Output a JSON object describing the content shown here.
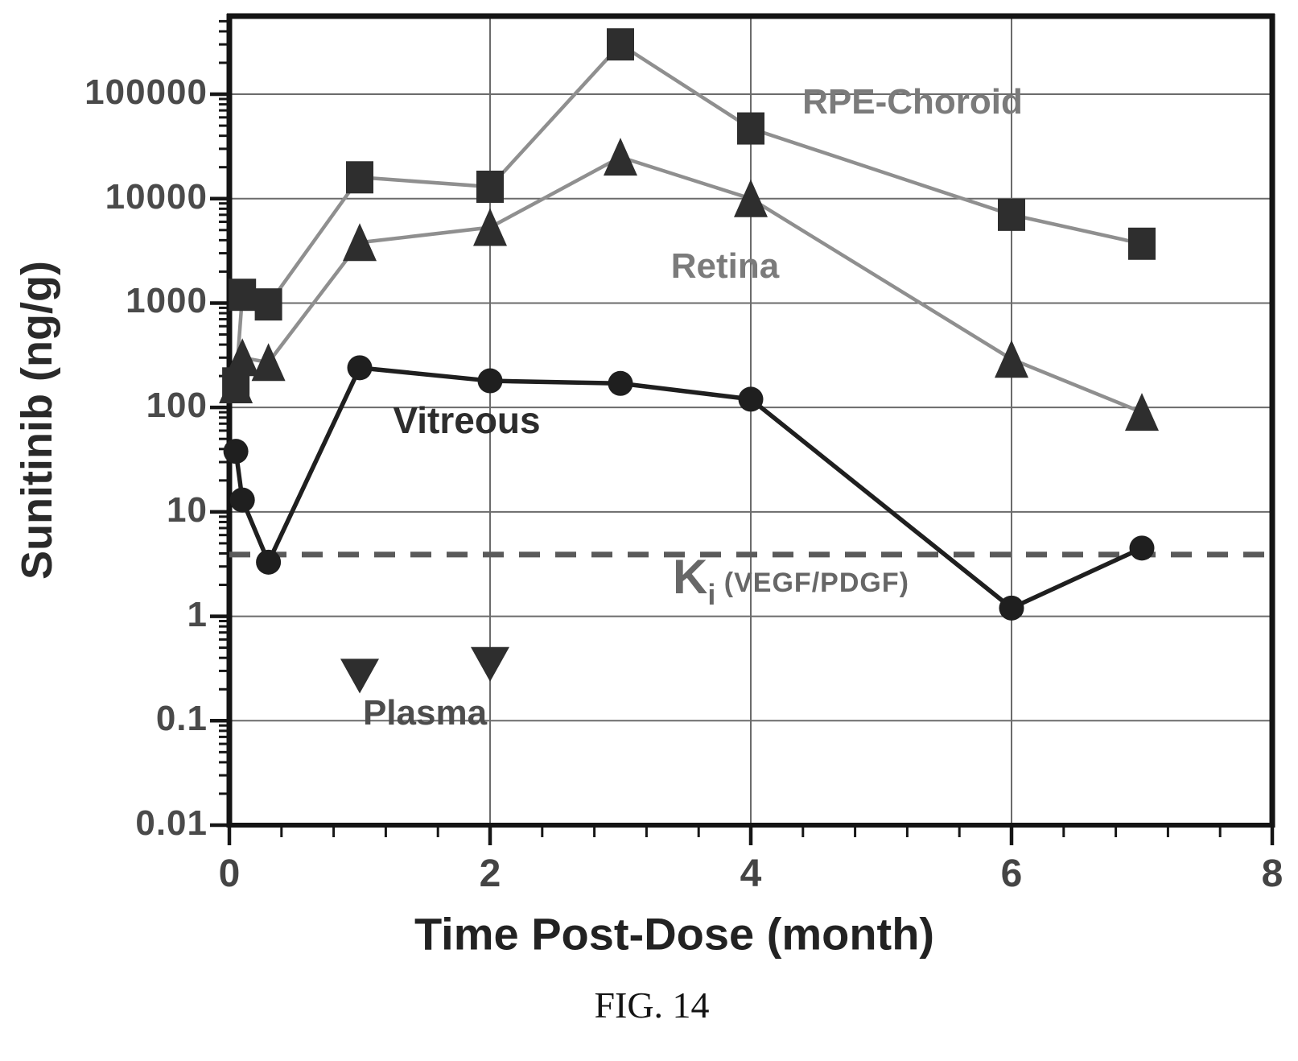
{
  "figure": {
    "caption": "FIG. 14"
  },
  "chart_data": {
    "type": "line",
    "title": "",
    "xlabel": "Time Post-Dose (month)",
    "ylabel": "Sunitinib (ng/g)",
    "x_scale": "linear",
    "y_scale": "log",
    "xlim": [
      0,
      8
    ],
    "ylim": [
      0.01,
      560000
    ],
    "x_ticks": [
      0,
      2,
      4,
      6,
      8
    ],
    "x_minor_step": 0.4,
    "y_ticks": [
      100000,
      10000,
      1000,
      100,
      10,
      1,
      0.1,
      0.01
    ],
    "y_tick_labels": [
      "100000",
      "10000",
      "1000",
      "100",
      "10",
      "1",
      "0.1",
      "0.01"
    ],
    "grid": {
      "horizontal_at": [
        100000,
        10000,
        1000,
        100,
        10,
        1,
        0.1,
        0.01
      ],
      "vertical_at": [
        2,
        4,
        6
      ]
    },
    "series": [
      {
        "name": "RPE-Choroid",
        "marker": "square",
        "line_color": "#8f8f8f",
        "marker_color": "#2e2e2e",
        "has_line": true,
        "x": [
          0.05,
          0.1,
          0.3,
          1,
          2,
          3,
          4,
          6,
          7
        ],
        "y": [
          170,
          1200,
          970,
          16000,
          13000,
          300000,
          47000,
          7000,
          3700
        ]
      },
      {
        "name": "Retina",
        "marker": "triangle-up",
        "line_color": "#8f8f8f",
        "marker_color": "#2e2e2e",
        "has_line": true,
        "x": [
          0.05,
          0.1,
          0.3,
          1,
          2,
          3,
          4,
          6,
          7
        ],
        "y": [
          165,
          300,
          270,
          3800,
          5300,
          25000,
          10000,
          290,
          90
        ]
      },
      {
        "name": "Vitreous",
        "marker": "circle",
        "line_color": "#1f1f1f",
        "marker_color": "#1f1f1f",
        "has_line": true,
        "x": [
          0.05,
          0.1,
          0.3,
          1,
          2,
          3,
          4,
          6,
          7
        ],
        "y": [
          38,
          13,
          3.3,
          240,
          180,
          170,
          120,
          1.2,
          4.5
        ]
      },
      {
        "name": "Plasma",
        "marker": "triangle-down",
        "line_color": "none",
        "marker_color": "#2e2e2e",
        "has_line": false,
        "x": [
          1,
          2
        ],
        "y": [
          0.27,
          0.35
        ]
      }
    ],
    "reference_line": {
      "value": 3.9,
      "style": "dashed",
      "color": "#5a5a5a",
      "label_main": "K",
      "label_sub": "i",
      "label_rest": " (VEGF/PDGF)"
    },
    "legend_position": "inline-annotations"
  }
}
